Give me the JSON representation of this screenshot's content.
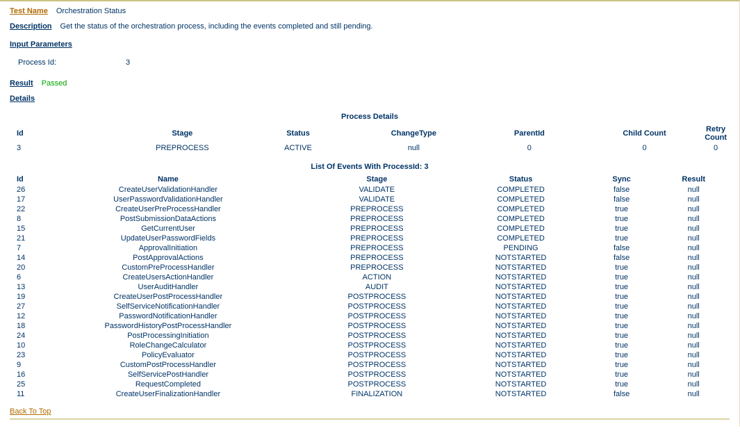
{
  "header": {
    "testNameLabel": "Test Name",
    "testNameValue": "Orchestration Status",
    "descriptionLabel": "Description",
    "descriptionValue": "Get the status of the orchestration process, including the events completed and still pending."
  },
  "inputParameters": {
    "heading": "Input Parameters",
    "items": [
      {
        "label": "Process Id:",
        "value": "3"
      }
    ]
  },
  "result": {
    "label": "Result",
    "value": "Passed"
  },
  "details": {
    "heading": "Details"
  },
  "processDetails": {
    "title": "Process Details",
    "columns": [
      "Id",
      "Stage",
      "Status",
      "ChangeType",
      "ParentId",
      "Child Count",
      "Retry Count"
    ],
    "rows": [
      [
        "3",
        "PREPROCESS",
        "ACTIVE",
        "null",
        "0",
        "0",
        "0"
      ]
    ]
  },
  "events": {
    "title": "List Of Events With ProcessId: 3",
    "columns": [
      "Id",
      "Name",
      "Stage",
      "Status",
      "Sync",
      "Result"
    ],
    "rows": [
      [
        "26",
        "CreateUserValidationHandler",
        "VALIDATE",
        "COMPLETED",
        "false",
        "null"
      ],
      [
        "17",
        "UserPasswordValidationHandler",
        "VALIDATE",
        "COMPLETED",
        "false",
        "null"
      ],
      [
        "22",
        "CreateUserPreProcessHandler",
        "PREPROCESS",
        "COMPLETED",
        "true",
        "null"
      ],
      [
        "8",
        "PostSubmissionDataActions",
        "PREPROCESS",
        "COMPLETED",
        "true",
        "null"
      ],
      [
        "15",
        "GetCurrentUser",
        "PREPROCESS",
        "COMPLETED",
        "true",
        "null"
      ],
      [
        "21",
        "UpdateUserPasswordFields",
        "PREPROCESS",
        "COMPLETED",
        "true",
        "null"
      ],
      [
        "7",
        "ApprovalInitiation",
        "PREPROCESS",
        "PENDING",
        "false",
        "null"
      ],
      [
        "14",
        "PostApprovalActions",
        "PREPROCESS",
        "NOTSTARTED",
        "false",
        "null"
      ],
      [
        "20",
        "CustomPreProcessHandler",
        "PREPROCESS",
        "NOTSTARTED",
        "true",
        "null"
      ],
      [
        "6",
        "CreateUsersActionHandler",
        "ACTION",
        "NOTSTARTED",
        "true",
        "null"
      ],
      [
        "13",
        "UserAuditHandler",
        "AUDIT",
        "NOTSTARTED",
        "true",
        "null"
      ],
      [
        "19",
        "CreateUserPostProcessHandler",
        "POSTPROCESS",
        "NOTSTARTED",
        "true",
        "null"
      ],
      [
        "27",
        "SelfServiceNotificationHandler",
        "POSTPROCESS",
        "NOTSTARTED",
        "true",
        "null"
      ],
      [
        "12",
        "PasswordNotificationHandler",
        "POSTPROCESS",
        "NOTSTARTED",
        "true",
        "null"
      ],
      [
        "18",
        "PasswordHistoryPostProcessHandler",
        "POSTPROCESS",
        "NOTSTARTED",
        "true",
        "null"
      ],
      [
        "24",
        "PostProcessingInitiation",
        "POSTPROCESS",
        "NOTSTARTED",
        "true",
        "null"
      ],
      [
        "10",
        "RoleChangeCalculator",
        "POSTPROCESS",
        "NOTSTARTED",
        "true",
        "null"
      ],
      [
        "23",
        "PolicyEvaluator",
        "POSTPROCESS",
        "NOTSTARTED",
        "true",
        "null"
      ],
      [
        "9",
        "CustomPostProcessHandler",
        "POSTPROCESS",
        "NOTSTARTED",
        "true",
        "null"
      ],
      [
        "16",
        "SelfServicePostHandler",
        "POSTPROCESS",
        "NOTSTARTED",
        "true",
        "null"
      ],
      [
        "25",
        "RequestCompleted",
        "POSTPROCESS",
        "NOTSTARTED",
        "true",
        "null"
      ],
      [
        "11",
        "CreateUserFinalizationHandler",
        "FINALIZATION",
        "NOTSTARTED",
        "false",
        "null"
      ]
    ]
  },
  "footer": {
    "backToTop": "Back To Top"
  },
  "colors": {
    "text": "#003366",
    "accent": "#b06a00",
    "passed": "#00a000",
    "border": "#ccc282",
    "background": "#ffffff"
  }
}
